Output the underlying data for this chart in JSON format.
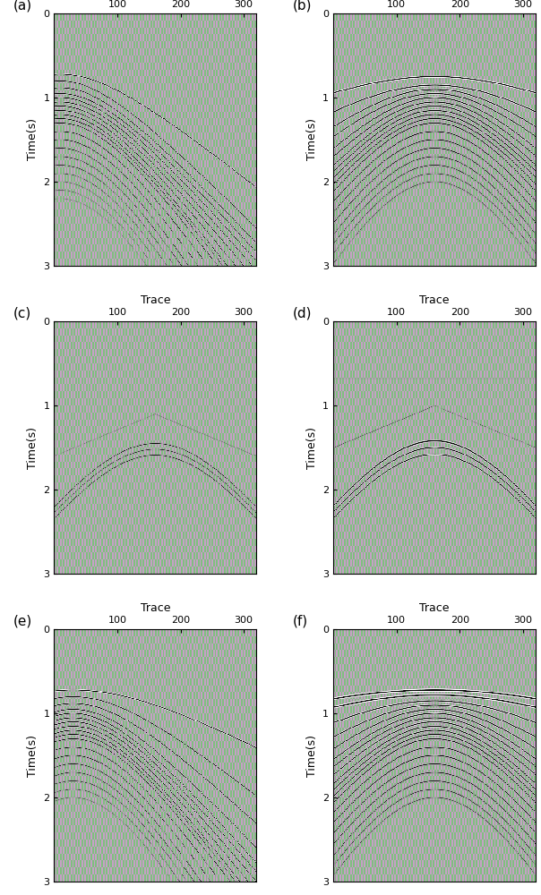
{
  "panels": [
    "(a)",
    "(b)",
    "(c)",
    "(d)",
    "(e)",
    "(f)"
  ],
  "ntraces": 320,
  "nsamples": 600,
  "dt": 0.005,
  "xlim": [
    0,
    320
  ],
  "ylim": [
    3,
    0
  ],
  "xticks": [
    100,
    200,
    300
  ],
  "yticks": [
    0,
    1,
    2,
    3
  ],
  "xlabel": "Trace",
  "ylabel": "Time(s)",
  "figsize": [
    6.04,
    10.0
  ],
  "dpi": 100,
  "bg_pink": [
    0.78,
    0.63,
    0.78
  ],
  "bg_green": [
    0.5,
    0.75,
    0.5
  ]
}
